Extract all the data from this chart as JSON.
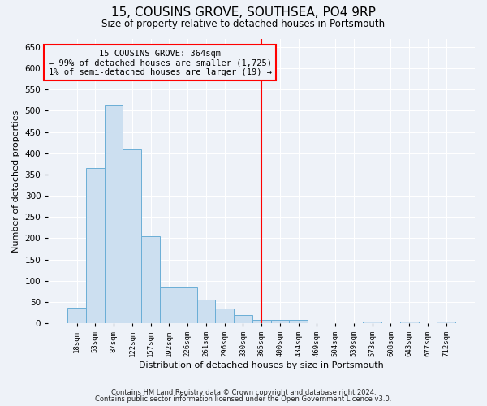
{
  "title": "15, COUSINS GROVE, SOUTHSEA, PO4 9RP",
  "subtitle": "Size of property relative to detached houses in Portsmouth",
  "xlabel": "Distribution of detached houses by size in Portsmouth",
  "ylabel": "Number of detached properties",
  "footnote1": "Contains HM Land Registry data © Crown copyright and database right 2024.",
  "footnote2": "Contains public sector information licensed under the Open Government Licence v3.0.",
  "annotation_title": "15 COUSINS GROVE: 364sqm",
  "annotation_line1": "← 99% of detached houses are smaller (1,725)",
  "annotation_line2": "1% of semi-detached houses are larger (19) →",
  "bar_color": "#ccdff0",
  "bar_edge_color": "#6aaed6",
  "vline_color": "red",
  "vline_x_index": 10,
  "annotation_box_color": "red",
  "bin_labels": [
    "18sqm",
    "53sqm",
    "87sqm",
    "122sqm",
    "157sqm",
    "192sqm",
    "226sqm",
    "261sqm",
    "296sqm",
    "330sqm",
    "365sqm",
    "400sqm",
    "434sqm",
    "469sqm",
    "504sqm",
    "539sqm",
    "573sqm",
    "608sqm",
    "643sqm",
    "677sqm",
    "712sqm"
  ],
  "bar_heights": [
    37,
    365,
    515,
    410,
    205,
    85,
    85,
    55,
    35,
    20,
    8,
    8,
    8,
    0,
    0,
    0,
    4,
    0,
    4,
    0,
    4
  ],
  "ylim": [
    0,
    670
  ],
  "yticks": [
    0,
    50,
    100,
    150,
    200,
    250,
    300,
    350,
    400,
    450,
    500,
    550,
    600,
    650
  ],
  "background_color": "#eef2f8",
  "grid_color": "#ffffff"
}
